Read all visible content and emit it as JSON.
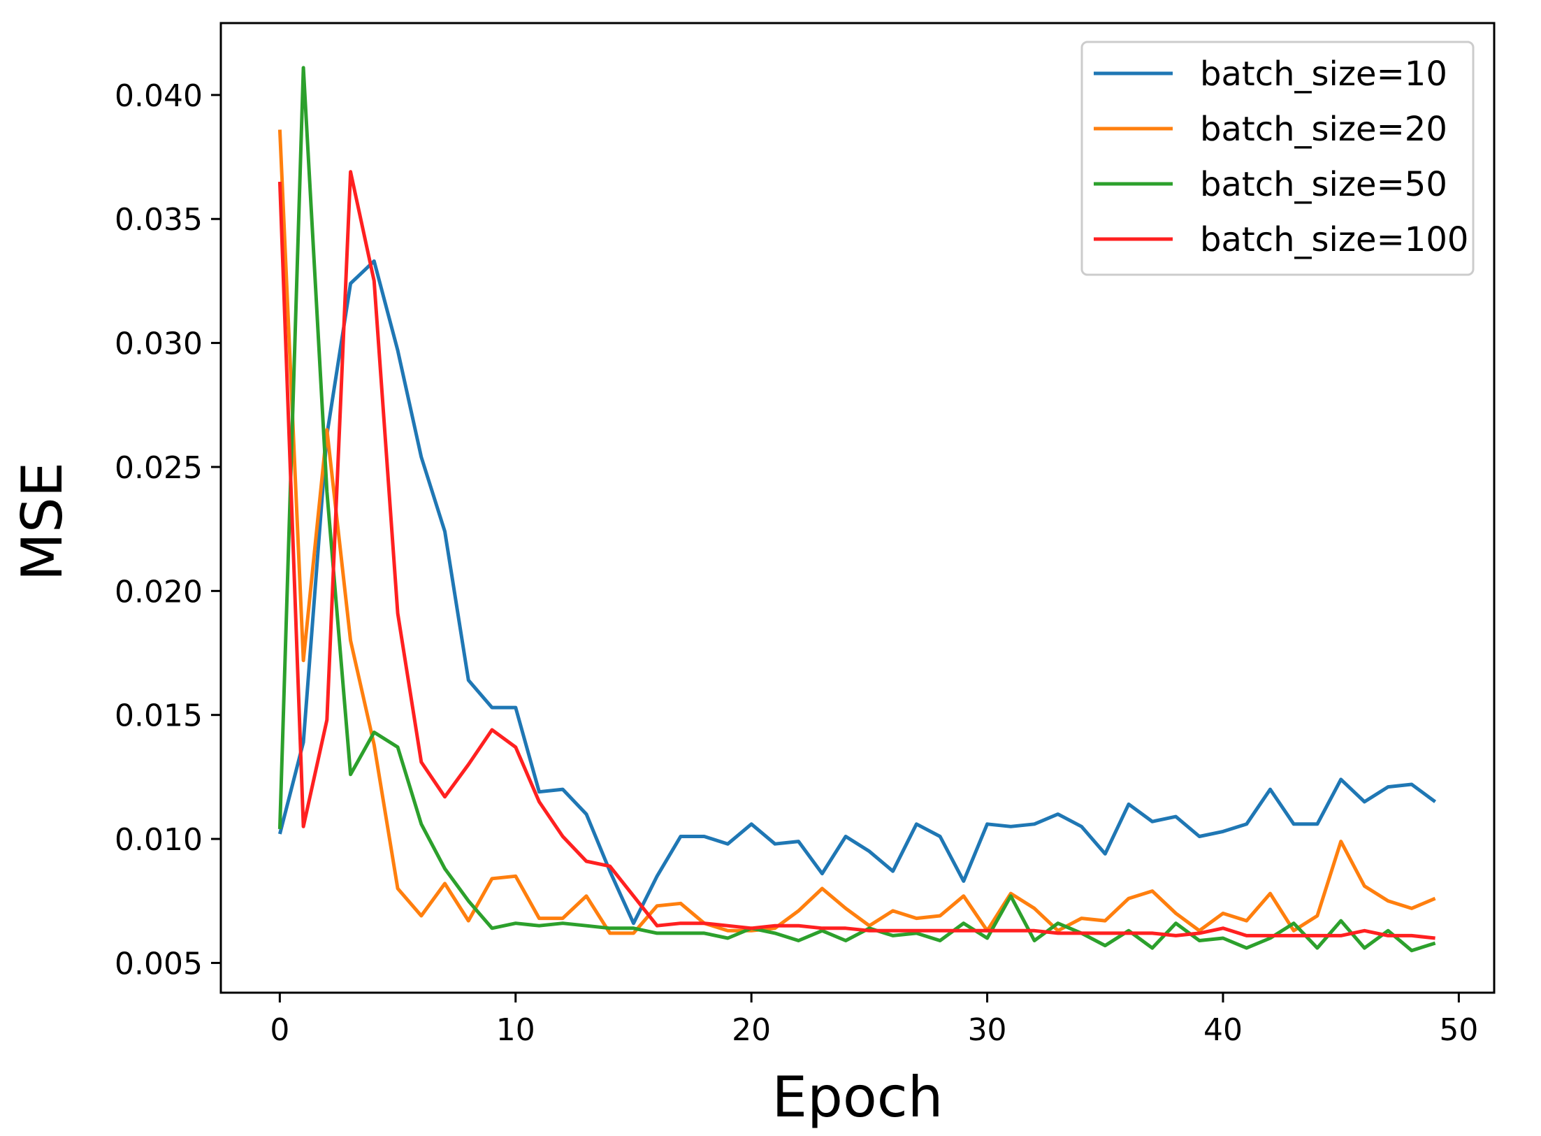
{
  "chart_data": {
    "type": "line",
    "title": "",
    "xlabel": "Epoch",
    "ylabel": "MSE",
    "xlim": [
      -2.5,
      51.5
    ],
    "ylim": [
      0.0038,
      0.0429
    ],
    "xticks": [
      0,
      10,
      20,
      30,
      40,
      50
    ],
    "xtick_labels": [
      "0",
      "10",
      "20",
      "30",
      "40",
      "50"
    ],
    "yticks": [
      0.005,
      0.01,
      0.015,
      0.02,
      0.025,
      0.03,
      0.035,
      0.04
    ],
    "ytick_labels": [
      "0.005",
      "0.010",
      "0.015",
      "0.020",
      "0.025",
      "0.030",
      "0.035",
      "0.040"
    ],
    "grid": false,
    "legend_position": "top-right",
    "x": [
      0,
      1,
      2,
      3,
      4,
      5,
      6,
      7,
      8,
      9,
      10,
      11,
      12,
      13,
      14,
      15,
      16,
      17,
      18,
      19,
      20,
      21,
      22,
      23,
      24,
      25,
      26,
      27,
      28,
      29,
      30,
      31,
      32,
      33,
      34,
      35,
      36,
      37,
      38,
      39,
      40,
      41,
      42,
      43,
      44,
      45,
      46,
      47,
      48,
      49
    ],
    "series": [
      {
        "name": "batch_size=10",
        "color": "#1f77b4",
        "values": [
          0.0102,
          0.0139,
          0.0263,
          0.0324,
          0.0333,
          0.0297,
          0.0254,
          0.0224,
          0.0164,
          0.0153,
          0.0153,
          0.0119,
          0.012,
          0.011,
          0.0087,
          0.0066,
          0.0085,
          0.0101,
          0.0101,
          0.0098,
          0.0106,
          0.0098,
          0.0099,
          0.0086,
          0.0101,
          0.0095,
          0.0087,
          0.0106,
          0.0101,
          0.0083,
          0.0106,
          0.0105,
          0.0106,
          0.011,
          0.0105,
          0.0094,
          0.0114,
          0.0107,
          0.0109,
          0.0101,
          0.0103,
          0.0106,
          0.012,
          0.0106,
          0.0106,
          0.0124,
          0.0115,
          0.0121,
          0.0122,
          0.0115
        ]
      },
      {
        "name": "batch_size=20",
        "color": "#ff7f0e",
        "values": [
          0.0386,
          0.0172,
          0.0265,
          0.018,
          0.0138,
          0.008,
          0.0069,
          0.0082,
          0.0067,
          0.0084,
          0.0085,
          0.0068,
          0.0068,
          0.0077,
          0.0062,
          0.0062,
          0.0073,
          0.0074,
          0.0066,
          0.0063,
          0.0063,
          0.0064,
          0.0071,
          0.008,
          0.0072,
          0.0065,
          0.0071,
          0.0068,
          0.0069,
          0.0077,
          0.0063,
          0.0078,
          0.0072,
          0.0063,
          0.0068,
          0.0067,
          0.0076,
          0.0079,
          0.007,
          0.0063,
          0.007,
          0.0067,
          0.0078,
          0.0063,
          0.0069,
          0.0099,
          0.0081,
          0.0075,
          0.0072,
          0.0076
        ]
      },
      {
        "name": "batch_size=50",
        "color": "#2ca02c",
        "values": [
          0.0104,
          0.0411,
          0.024,
          0.0126,
          0.0143,
          0.0137,
          0.0106,
          0.0088,
          0.0075,
          0.0064,
          0.0066,
          0.0065,
          0.0066,
          0.0065,
          0.0064,
          0.0064,
          0.0062,
          0.0062,
          0.0062,
          0.006,
          0.0064,
          0.0062,
          0.0059,
          0.0063,
          0.0059,
          0.0064,
          0.0061,
          0.0062,
          0.0059,
          0.0066,
          0.006,
          0.0077,
          0.0059,
          0.0066,
          0.0062,
          0.0057,
          0.0063,
          0.0056,
          0.0066,
          0.0059,
          0.006,
          0.0056,
          0.006,
          0.0066,
          0.0056,
          0.0067,
          0.0056,
          0.0063,
          0.0055,
          0.0058
        ]
      },
      {
        "name": "batch_size=100",
        "color": "#ff2020",
        "values": [
          0.0365,
          0.0105,
          0.0148,
          0.0369,
          0.0325,
          0.0191,
          0.0131,
          0.0117,
          0.013,
          0.0144,
          0.0137,
          0.0115,
          0.0101,
          0.0091,
          0.0089,
          0.0077,
          0.0065,
          0.0066,
          0.0066,
          0.0065,
          0.0064,
          0.0065,
          0.0065,
          0.0064,
          0.0064,
          0.0063,
          0.0063,
          0.0063,
          0.0063,
          0.0063,
          0.0063,
          0.0063,
          0.0063,
          0.0062,
          0.0062,
          0.0062,
          0.0062,
          0.0062,
          0.0061,
          0.0062,
          0.0064,
          0.0061,
          0.0061,
          0.0061,
          0.0061,
          0.0061,
          0.0063,
          0.0061,
          0.0061,
          0.006
        ]
      }
    ]
  }
}
